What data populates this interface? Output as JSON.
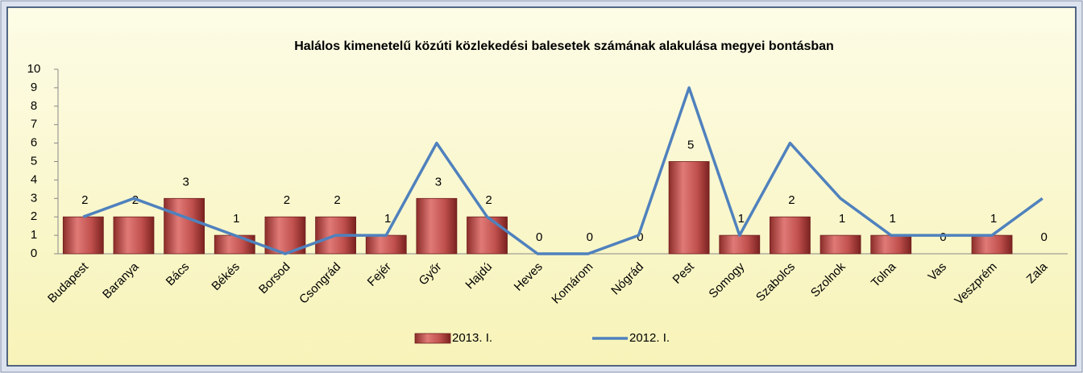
{
  "chart_data": {
    "type": "bar-line",
    "title": "Halálos kimenetelű közúti közlekedési balesetek számának alakulása megyei bontásban",
    "categories": [
      "Budapest",
      "Baranya",
      "Bács",
      "Békés",
      "Borsod",
      "Csongrád",
      "Fejér",
      "Győr",
      "Hajdú",
      "Heves",
      "Komárom",
      "Nógrád",
      "Pest",
      "Somogy",
      "Szabolcs",
      "Szolnok",
      "Tolna",
      "Vas",
      "Veszprém",
      "Zala"
    ],
    "series": [
      {
        "name": "2013. I.",
        "type": "bar",
        "color": "#c0504d",
        "values": [
          2,
          2,
          3,
          1,
          2,
          2,
          1,
          3,
          2,
          0,
          0,
          0,
          5,
          1,
          2,
          1,
          1,
          0,
          1,
          0
        ]
      },
      {
        "name": "2012. I.",
        "type": "line",
        "color": "#4f81bd",
        "values": [
          2,
          3,
          2,
          1,
          0,
          1,
          1,
          6,
          2,
          0,
          0,
          1,
          9,
          1,
          6,
          3,
          1,
          1,
          1,
          3
        ]
      }
    ],
    "ylim": [
      0,
      10
    ],
    "yticks": [
      0,
      1,
      2,
      3,
      4,
      5,
      6,
      7,
      8,
      9,
      10
    ],
    "legend": "bottom"
  }
}
